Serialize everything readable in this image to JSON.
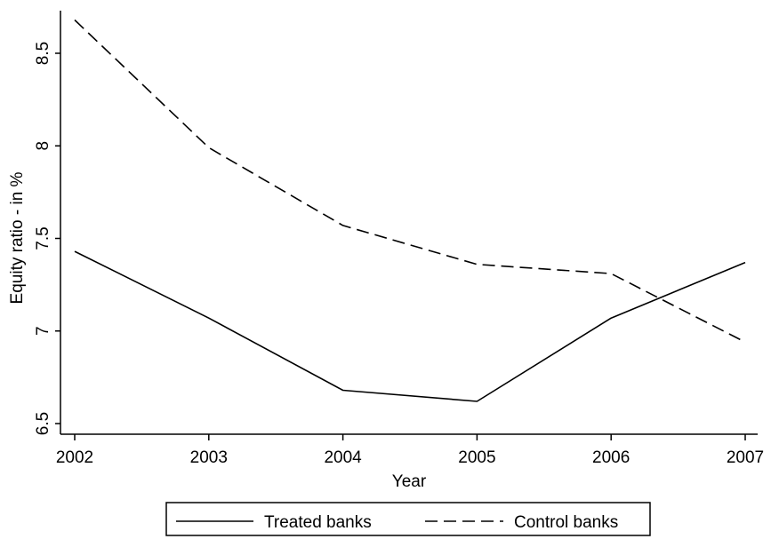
{
  "chart_data": {
    "type": "line",
    "title": "",
    "xlabel": "Year",
    "ylabel": "Equity ratio - in %",
    "x": [
      2002,
      2003,
      2004,
      2005,
      2006,
      2007
    ],
    "xlim": [
      2002,
      2007
    ],
    "ylim": [
      6.5,
      8.7
    ],
    "yticks": [
      6.5,
      7,
      7.5,
      8,
      8.5
    ],
    "ytick_labels": [
      "6.5",
      "7",
      "7.5",
      "8",
      "8.5"
    ],
    "xtick_labels": [
      "2002",
      "2003",
      "2004",
      "2005",
      "2006",
      "2007"
    ],
    "grid": false,
    "legend_position": "bottom",
    "series": [
      {
        "name": "Treated banks",
        "style": "solid",
        "color": "#000000",
        "values": [
          7.43,
          7.07,
          6.68,
          6.62,
          7.07,
          7.37
        ]
      },
      {
        "name": "Control banks",
        "style": "dashed",
        "color": "#000000",
        "values": [
          8.68,
          7.99,
          7.57,
          7.36,
          7.31,
          6.94
        ]
      }
    ]
  }
}
